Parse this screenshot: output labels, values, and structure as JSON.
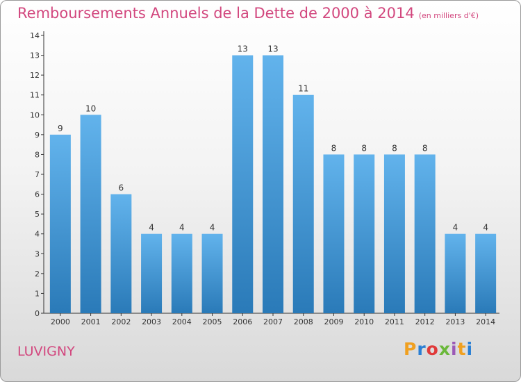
{
  "header": {
    "title": "Remboursements Annuels de la Dette de 2000 à 2014",
    "unit": "(en milliers d'€)"
  },
  "footer": {
    "town": "LUVIGNY",
    "brand": "Proxiti",
    "brand_colors": [
      "#f0a020",
      "#2a7fd4",
      "#e03a3a",
      "#6ab83a",
      "#9b59b6",
      "#f0a020",
      "#2a7fd4"
    ]
  },
  "colors": {
    "bar_top": "#62b3ec",
    "bar_bottom": "#2a7ab8",
    "title": "#d2477e"
  },
  "chart_data": {
    "type": "bar",
    "categories": [
      "2000",
      "2001",
      "2002",
      "2003",
      "2004",
      "2005",
      "2006",
      "2007",
      "2008",
      "2009",
      "2010",
      "2011",
      "2012",
      "2013",
      "2014"
    ],
    "values": [
      9,
      10,
      6,
      4,
      4,
      4,
      13,
      13,
      11,
      8,
      8,
      8,
      8,
      4,
      4
    ],
    "ylim": [
      0,
      14
    ],
    "yticks": [
      0,
      1,
      2,
      3,
      4,
      5,
      6,
      7,
      8,
      9,
      10,
      11,
      12,
      13,
      14
    ],
    "grid": false,
    "data_labels": true
  }
}
